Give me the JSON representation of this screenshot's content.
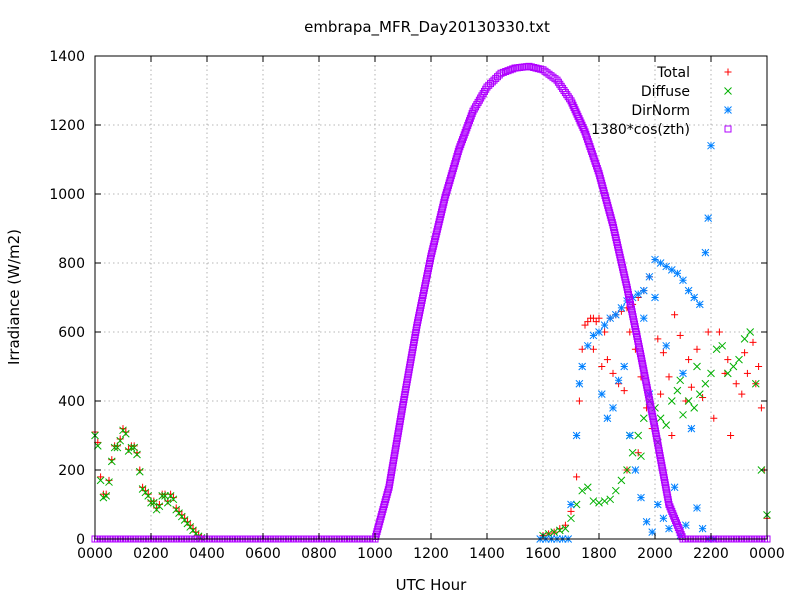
{
  "chart_data": {
    "type": "scatter",
    "title": "embrapa_MFR_Day20130330.txt",
    "xlabel": "UTC Hour",
    "ylabel": "Irradiance (W/m2)",
    "xlim": [
      0,
      24
    ],
    "ylim": [
      0,
      1400
    ],
    "x_ticks": [
      {
        "value": 0,
        "label": "0000"
      },
      {
        "value": 2,
        "label": "0200"
      },
      {
        "value": 4,
        "label": "0400"
      },
      {
        "value": 6,
        "label": "0600"
      },
      {
        "value": 8,
        "label": "0800"
      },
      {
        "value": 10,
        "label": "1000"
      },
      {
        "value": 12,
        "label": "1200"
      },
      {
        "value": 14,
        "label": "1400"
      },
      {
        "value": 16,
        "label": "1600"
      },
      {
        "value": 18,
        "label": "1800"
      },
      {
        "value": 20,
        "label": "2000"
      },
      {
        "value": 22,
        "label": "2200"
      },
      {
        "value": 24,
        "label": "0000"
      }
    ],
    "y_ticks": [
      0,
      200,
      400,
      600,
      800,
      1000,
      1200,
      1400
    ],
    "grid": true,
    "legend_position": "top-right",
    "series": [
      {
        "name": "Total",
        "color": "#ff0000",
        "marker": "plus",
        "points": [
          [
            0.0,
            310
          ],
          [
            0.1,
            280
          ],
          [
            0.2,
            180
          ],
          [
            0.3,
            130
          ],
          [
            0.4,
            130
          ],
          [
            0.5,
            170
          ],
          [
            0.6,
            230
          ],
          [
            0.7,
            270
          ],
          [
            0.8,
            270
          ],
          [
            0.9,
            290
          ],
          [
            1.0,
            320
          ],
          [
            1.1,
            310
          ],
          [
            1.2,
            260
          ],
          [
            1.3,
            270
          ],
          [
            1.4,
            270
          ],
          [
            1.5,
            250
          ],
          [
            1.6,
            200
          ],
          [
            1.7,
            150
          ],
          [
            1.8,
            140
          ],
          [
            1.9,
            130
          ],
          [
            2.0,
            110
          ],
          [
            2.1,
            110
          ],
          [
            2.2,
            90
          ],
          [
            2.3,
            100
          ],
          [
            2.4,
            130
          ],
          [
            2.5,
            130
          ],
          [
            2.6,
            110
          ],
          [
            2.7,
            130
          ],
          [
            2.8,
            120
          ],
          [
            2.9,
            90
          ],
          [
            3.0,
            80
          ],
          [
            3.1,
            70
          ],
          [
            3.2,
            60
          ],
          [
            3.3,
            50
          ],
          [
            3.4,
            40
          ],
          [
            3.5,
            30
          ],
          [
            3.6,
            20
          ],
          [
            3.7,
            10
          ],
          [
            3.8,
            5
          ],
          [
            16.0,
            10
          ],
          [
            16.2,
            15
          ],
          [
            16.4,
            20
          ],
          [
            16.6,
            30
          ],
          [
            16.8,
            40
          ],
          [
            17.0,
            80
          ],
          [
            17.2,
            180
          ],
          [
            17.3,
            400
          ],
          [
            17.4,
            550
          ],
          [
            17.5,
            620
          ],
          [
            17.6,
            630
          ],
          [
            17.7,
            640
          ],
          [
            17.8,
            640
          ],
          [
            17.9,
            630
          ],
          [
            18.0,
            640
          ],
          [
            18.2,
            600
          ],
          [
            18.4,
            640
          ],
          [
            18.6,
            650
          ],
          [
            18.8,
            660
          ],
          [
            19.0,
            670
          ],
          [
            19.2,
            680
          ],
          [
            19.4,
            700
          ],
          [
            19.6,
            720
          ],
          [
            19.8,
            760
          ],
          [
            20.0,
            810
          ],
          [
            17.8,
            550
          ],
          [
            18.1,
            500
          ],
          [
            18.3,
            520
          ],
          [
            18.5,
            480
          ],
          [
            18.7,
            450
          ],
          [
            18.9,
            430
          ],
          [
            19.1,
            600
          ],
          [
            19.3,
            550
          ],
          [
            19.5,
            470
          ],
          [
            19.7,
            380
          ],
          [
            19.9,
            320
          ],
          [
            20.1,
            580
          ],
          [
            20.3,
            540
          ],
          [
            20.5,
            470
          ],
          [
            20.7,
            650
          ],
          [
            20.9,
            590
          ],
          [
            21.1,
            400
          ],
          [
            21.3,
            440
          ],
          [
            21.5,
            550
          ],
          [
            21.7,
            410
          ],
          [
            21.9,
            600
          ],
          [
            22.1,
            350
          ],
          [
            22.3,
            600
          ],
          [
            22.5,
            480
          ],
          [
            22.7,
            300
          ],
          [
            22.9,
            450
          ],
          [
            23.1,
            420
          ],
          [
            23.3,
            480
          ],
          [
            23.5,
            570
          ],
          [
            23.7,
            500
          ],
          [
            23.8,
            380
          ],
          [
            23.9,
            200
          ],
          [
            24.0,
            60
          ],
          [
            21.2,
            520
          ],
          [
            20.6,
            300
          ],
          [
            19.4,
            250
          ],
          [
            19.0,
            200
          ],
          [
            20.2,
            420
          ],
          [
            22.6,
            520
          ],
          [
            23.2,
            540
          ],
          [
            23.6,
            450
          ]
        ]
      },
      {
        "name": "Diffuse",
        "color": "#00b000",
        "marker": "cross",
        "points": [
          [
            0.0,
            300
          ],
          [
            0.1,
            270
          ],
          [
            0.2,
            170
          ],
          [
            0.3,
            120
          ],
          [
            0.4,
            125
          ],
          [
            0.5,
            165
          ],
          [
            0.6,
            225
          ],
          [
            0.7,
            265
          ],
          [
            0.8,
            265
          ],
          [
            0.9,
            285
          ],
          [
            1.0,
            315
          ],
          [
            1.1,
            305
          ],
          [
            1.2,
            255
          ],
          [
            1.3,
            265
          ],
          [
            1.4,
            265
          ],
          [
            1.5,
            245
          ],
          [
            1.6,
            195
          ],
          [
            1.7,
            145
          ],
          [
            1.8,
            135
          ],
          [
            1.9,
            125
          ],
          [
            2.0,
            105
          ],
          [
            2.1,
            105
          ],
          [
            2.2,
            85
          ],
          [
            2.3,
            95
          ],
          [
            2.4,
            125
          ],
          [
            2.5,
            125
          ],
          [
            2.6,
            105
          ],
          [
            2.7,
            125
          ],
          [
            2.8,
            115
          ],
          [
            2.9,
            85
          ],
          [
            3.0,
            75
          ],
          [
            3.1,
            65
          ],
          [
            3.2,
            55
          ],
          [
            3.3,
            45
          ],
          [
            3.4,
            35
          ],
          [
            3.5,
            25
          ],
          [
            3.6,
            15
          ],
          [
            3.7,
            8
          ],
          [
            3.8,
            3
          ],
          [
            16.0,
            10
          ],
          [
            16.2,
            15
          ],
          [
            16.4,
            20
          ],
          [
            16.6,
            25
          ],
          [
            16.8,
            30
          ],
          [
            17.0,
            60
          ],
          [
            17.2,
            100
          ],
          [
            17.4,
            140
          ],
          [
            17.6,
            150
          ],
          [
            17.8,
            110
          ],
          [
            18.0,
            105
          ],
          [
            18.2,
            110
          ],
          [
            18.4,
            115
          ],
          [
            18.6,
            140
          ],
          [
            18.8,
            170
          ],
          [
            19.0,
            200
          ],
          [
            19.2,
            250
          ],
          [
            19.4,
            300
          ],
          [
            19.6,
            350
          ],
          [
            19.8,
            400
          ],
          [
            20.0,
            380
          ],
          [
            20.2,
            350
          ],
          [
            20.4,
            330
          ],
          [
            20.6,
            400
          ],
          [
            20.8,
            430
          ],
          [
            21.0,
            360
          ],
          [
            21.2,
            400
          ],
          [
            21.4,
            380
          ],
          [
            21.6,
            420
          ],
          [
            21.8,
            450
          ],
          [
            22.0,
            480
          ],
          [
            22.2,
            550
          ],
          [
            22.4,
            560
          ],
          [
            22.6,
            480
          ],
          [
            22.8,
            500
          ],
          [
            23.0,
            520
          ],
          [
            23.2,
            580
          ],
          [
            23.4,
            600
          ],
          [
            23.6,
            450
          ],
          [
            23.8,
            200
          ],
          [
            24.0,
            70
          ],
          [
            19.1,
            300
          ],
          [
            19.5,
            240
          ],
          [
            20.1,
            280
          ],
          [
            20.9,
            460
          ],
          [
            21.5,
            500
          ]
        ]
      },
      {
        "name": "DirNorm",
        "color": "#0080ff",
        "marker": "star",
        "points": [
          [
            15.9,
            0
          ],
          [
            16.1,
            0
          ],
          [
            16.3,
            0
          ],
          [
            16.5,
            0
          ],
          [
            16.7,
            0
          ],
          [
            16.9,
            0
          ],
          [
            17.0,
            100
          ],
          [
            17.2,
            300
          ],
          [
            17.3,
            450
          ],
          [
            17.4,
            500
          ],
          [
            17.6,
            560
          ],
          [
            17.8,
            590
          ],
          [
            18.0,
            600
          ],
          [
            18.2,
            620
          ],
          [
            18.4,
            640
          ],
          [
            18.6,
            650
          ],
          [
            18.8,
            670
          ],
          [
            19.0,
            690
          ],
          [
            19.2,
            700
          ],
          [
            19.4,
            710
          ],
          [
            19.6,
            720
          ],
          [
            19.8,
            760
          ],
          [
            20.0,
            810
          ],
          [
            20.2,
            800
          ],
          [
            20.4,
            790
          ],
          [
            20.6,
            780
          ],
          [
            20.8,
            770
          ],
          [
            21.0,
            750
          ],
          [
            21.2,
            720
          ],
          [
            21.4,
            700
          ],
          [
            21.6,
            680
          ],
          [
            21.8,
            830
          ],
          [
            21.9,
            930
          ],
          [
            22.0,
            1140
          ],
          [
            18.1,
            420
          ],
          [
            18.3,
            350
          ],
          [
            18.5,
            380
          ],
          [
            18.7,
            460
          ],
          [
            18.9,
            500
          ],
          [
            19.1,
            300
          ],
          [
            19.3,
            200
          ],
          [
            19.5,
            120
          ],
          [
            19.7,
            50
          ],
          [
            19.9,
            20
          ],
          [
            20.1,
            100
          ],
          [
            20.3,
            60
          ],
          [
            20.5,
            30
          ],
          [
            20.7,
            150
          ],
          [
            20.9,
            10
          ],
          [
            21.1,
            40
          ],
          [
            21.3,
            320
          ],
          [
            21.5,
            90
          ],
          [
            21.7,
            30
          ],
          [
            21.9,
            0
          ],
          [
            22.1,
            0
          ],
          [
            19.6,
            640
          ],
          [
            20.4,
            560
          ],
          [
            21.0,
            480
          ],
          [
            20.0,
            700
          ],
          [
            19.8,
            420
          ]
        ]
      },
      {
        "name": "1380*cos(zth)",
        "color": "#b000ff",
        "marker": "square",
        "points": [
          [
            0,
            0
          ],
          [
            1,
            0
          ],
          [
            2,
            0
          ],
          [
            3,
            0
          ],
          [
            4,
            0
          ],
          [
            5,
            0
          ],
          [
            6,
            0
          ],
          [
            7,
            0
          ],
          [
            8,
            0
          ],
          [
            9,
            0
          ],
          [
            10,
            0
          ],
          [
            10.5,
            150
          ],
          [
            11,
            390
          ],
          [
            11.5,
            620
          ],
          [
            12,
            820
          ],
          [
            12.5,
            990
          ],
          [
            13,
            1130
          ],
          [
            13.5,
            1240
          ],
          [
            14,
            1310
          ],
          [
            14.5,
            1350
          ],
          [
            15,
            1365
          ],
          [
            15.5,
            1370
          ],
          [
            16,
            1360
          ],
          [
            16.5,
            1330
          ],
          [
            17,
            1270
          ],
          [
            17.5,
            1180
          ],
          [
            18,
            1060
          ],
          [
            18.5,
            910
          ],
          [
            19,
            730
          ],
          [
            19.5,
            530
          ],
          [
            20,
            320
          ],
          [
            20.5,
            100
          ],
          [
            21,
            0
          ],
          [
            22,
            0
          ],
          [
            23,
            0
          ],
          [
            24,
            0
          ]
        ]
      }
    ]
  }
}
